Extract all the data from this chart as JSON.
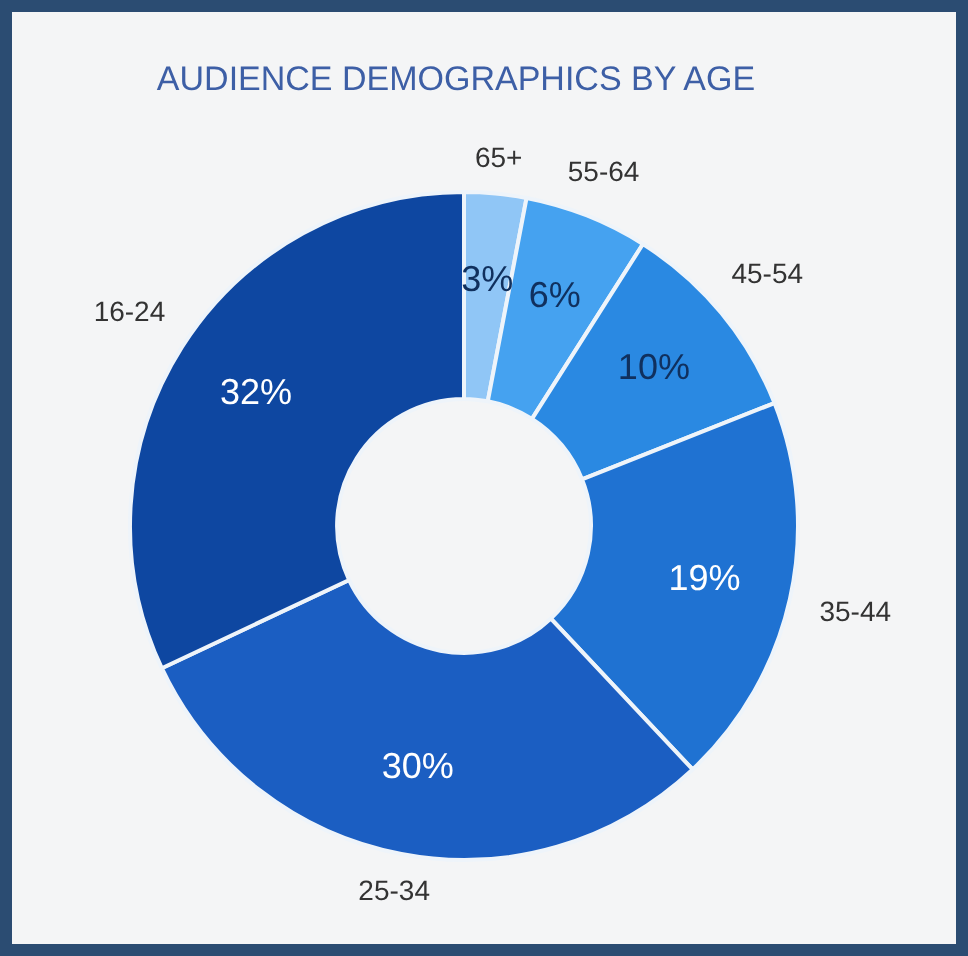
{
  "chart_data": {
    "type": "donut",
    "title": "AUDIENCE DEMOGRAPHICS BY AGE",
    "categories": [
      "65+",
      "55-64",
      "45-54",
      "35-44",
      "25-34",
      "16-24"
    ],
    "values": [
      3,
      6,
      10,
      19,
      30,
      32
    ],
    "value_labels": [
      "3%",
      "6%",
      "10%",
      "19%",
      "30%",
      "32%"
    ],
    "colors": [
      "#90c6f6",
      "#45a2f0",
      "#2a89e2",
      "#1f72d2",
      "#1b5ec2",
      "#0e47a1"
    ],
    "legend": false
  }
}
